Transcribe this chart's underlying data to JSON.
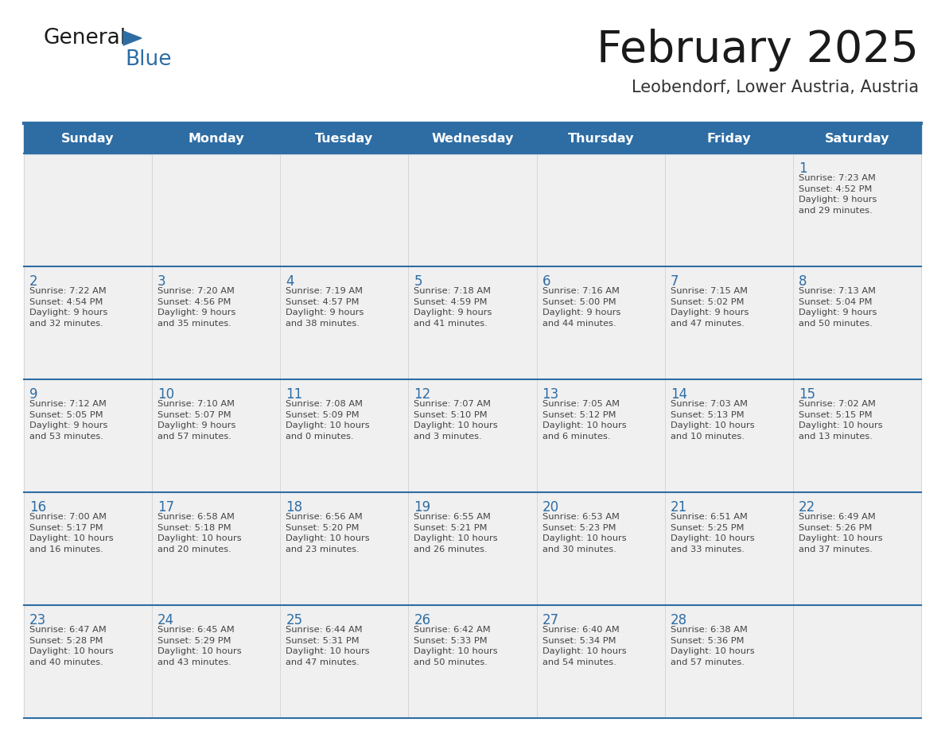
{
  "title": "February 2025",
  "subtitle": "Leobendorf, Lower Austria, Austria",
  "header_bg": "#2E6DA4",
  "header_text_color": "#FFFFFF",
  "cell_bg": "#F0F0F0",
  "cell_bg_white": "#FFFFFF",
  "day_number_color": "#2E6DA4",
  "cell_text_color": "#444444",
  "border_color": "#2E6DA4",
  "title_color": "#1a1a1a",
  "subtitle_color": "#333333",
  "days_of_week": [
    "Sunday",
    "Monday",
    "Tuesday",
    "Wednesday",
    "Thursday",
    "Friday",
    "Saturday"
  ],
  "weeks": [
    [
      {
        "day": null,
        "info": null
      },
      {
        "day": null,
        "info": null
      },
      {
        "day": null,
        "info": null
      },
      {
        "day": null,
        "info": null
      },
      {
        "day": null,
        "info": null
      },
      {
        "day": null,
        "info": null
      },
      {
        "day": 1,
        "info": "Sunrise: 7:23 AM\nSunset: 4:52 PM\nDaylight: 9 hours\nand 29 minutes."
      }
    ],
    [
      {
        "day": 2,
        "info": "Sunrise: 7:22 AM\nSunset: 4:54 PM\nDaylight: 9 hours\nand 32 minutes."
      },
      {
        "day": 3,
        "info": "Sunrise: 7:20 AM\nSunset: 4:56 PM\nDaylight: 9 hours\nand 35 minutes."
      },
      {
        "day": 4,
        "info": "Sunrise: 7:19 AM\nSunset: 4:57 PM\nDaylight: 9 hours\nand 38 minutes."
      },
      {
        "day": 5,
        "info": "Sunrise: 7:18 AM\nSunset: 4:59 PM\nDaylight: 9 hours\nand 41 minutes."
      },
      {
        "day": 6,
        "info": "Sunrise: 7:16 AM\nSunset: 5:00 PM\nDaylight: 9 hours\nand 44 minutes."
      },
      {
        "day": 7,
        "info": "Sunrise: 7:15 AM\nSunset: 5:02 PM\nDaylight: 9 hours\nand 47 minutes."
      },
      {
        "day": 8,
        "info": "Sunrise: 7:13 AM\nSunset: 5:04 PM\nDaylight: 9 hours\nand 50 minutes."
      }
    ],
    [
      {
        "day": 9,
        "info": "Sunrise: 7:12 AM\nSunset: 5:05 PM\nDaylight: 9 hours\nand 53 minutes."
      },
      {
        "day": 10,
        "info": "Sunrise: 7:10 AM\nSunset: 5:07 PM\nDaylight: 9 hours\nand 57 minutes."
      },
      {
        "day": 11,
        "info": "Sunrise: 7:08 AM\nSunset: 5:09 PM\nDaylight: 10 hours\nand 0 minutes."
      },
      {
        "day": 12,
        "info": "Sunrise: 7:07 AM\nSunset: 5:10 PM\nDaylight: 10 hours\nand 3 minutes."
      },
      {
        "day": 13,
        "info": "Sunrise: 7:05 AM\nSunset: 5:12 PM\nDaylight: 10 hours\nand 6 minutes."
      },
      {
        "day": 14,
        "info": "Sunrise: 7:03 AM\nSunset: 5:13 PM\nDaylight: 10 hours\nand 10 minutes."
      },
      {
        "day": 15,
        "info": "Sunrise: 7:02 AM\nSunset: 5:15 PM\nDaylight: 10 hours\nand 13 minutes."
      }
    ],
    [
      {
        "day": 16,
        "info": "Sunrise: 7:00 AM\nSunset: 5:17 PM\nDaylight: 10 hours\nand 16 minutes."
      },
      {
        "day": 17,
        "info": "Sunrise: 6:58 AM\nSunset: 5:18 PM\nDaylight: 10 hours\nand 20 minutes."
      },
      {
        "day": 18,
        "info": "Sunrise: 6:56 AM\nSunset: 5:20 PM\nDaylight: 10 hours\nand 23 minutes."
      },
      {
        "day": 19,
        "info": "Sunrise: 6:55 AM\nSunset: 5:21 PM\nDaylight: 10 hours\nand 26 minutes."
      },
      {
        "day": 20,
        "info": "Sunrise: 6:53 AM\nSunset: 5:23 PM\nDaylight: 10 hours\nand 30 minutes."
      },
      {
        "day": 21,
        "info": "Sunrise: 6:51 AM\nSunset: 5:25 PM\nDaylight: 10 hours\nand 33 minutes."
      },
      {
        "day": 22,
        "info": "Sunrise: 6:49 AM\nSunset: 5:26 PM\nDaylight: 10 hours\nand 37 minutes."
      }
    ],
    [
      {
        "day": 23,
        "info": "Sunrise: 6:47 AM\nSunset: 5:28 PM\nDaylight: 10 hours\nand 40 minutes."
      },
      {
        "day": 24,
        "info": "Sunrise: 6:45 AM\nSunset: 5:29 PM\nDaylight: 10 hours\nand 43 minutes."
      },
      {
        "day": 25,
        "info": "Sunrise: 6:44 AM\nSunset: 5:31 PM\nDaylight: 10 hours\nand 47 minutes."
      },
      {
        "day": 26,
        "info": "Sunrise: 6:42 AM\nSunset: 5:33 PM\nDaylight: 10 hours\nand 50 minutes."
      },
      {
        "day": 27,
        "info": "Sunrise: 6:40 AM\nSunset: 5:34 PM\nDaylight: 10 hours\nand 54 minutes."
      },
      {
        "day": 28,
        "info": "Sunrise: 6:38 AM\nSunset: 5:36 PM\nDaylight: 10 hours\nand 57 minutes."
      },
      {
        "day": null,
        "info": null
      }
    ]
  ],
  "logo_general_color": "#1a1a1a",
  "logo_blue_color": "#2E6DA4",
  "logo_triangle_color": "#2E6DA4"
}
